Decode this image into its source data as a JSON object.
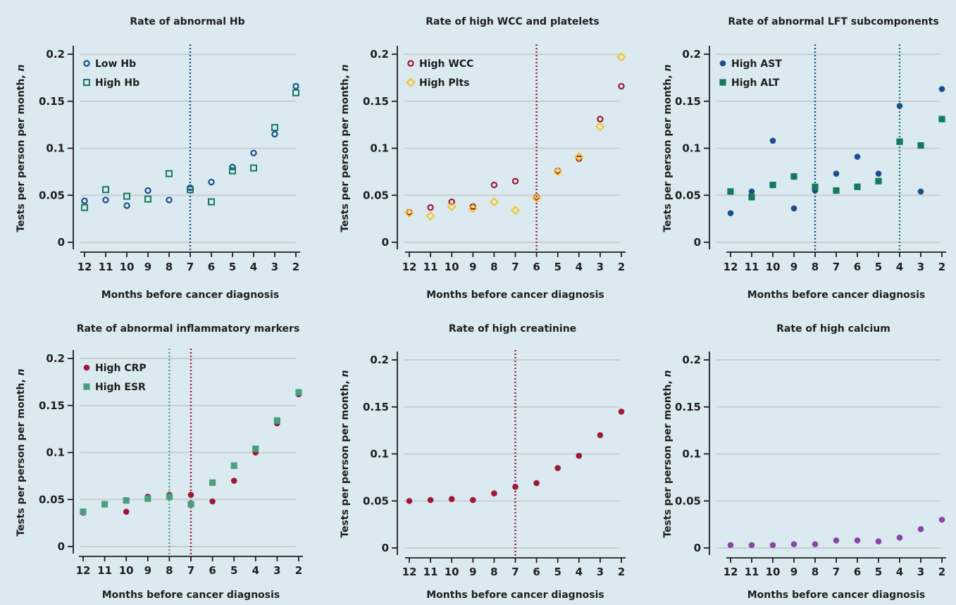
{
  "colors": {
    "background": "#dbeaf0",
    "gridline": "#c9cdd2",
    "axis": "#1e1e1e",
    "navy": "#1b4f8c",
    "green": "#137a5e",
    "crimson": "#9e1838",
    "gold": "#f5c21b",
    "seagreen": "#4a9e80",
    "purple": "#8a45a8"
  },
  "chart_data": [
    {
      "type": "scatter",
      "title": "Rate of abnormal Hb",
      "xlabel": "Months before cancer diagnosis",
      "ylabel": "Tests per person per month, n",
      "x": [
        12,
        11,
        10,
        9,
        8,
        7,
        6,
        5,
        4,
        3,
        2
      ],
      "xlim": [
        12,
        2
      ],
      "yticks": [
        "0",
        "0.05",
        "0.1",
        "0.15",
        "0.2"
      ],
      "ylim": [
        0,
        0.2
      ],
      "grid": true,
      "legend_position": "top-left",
      "vlines": [
        {
          "x": 7,
          "color": "#1b4f8c"
        }
      ],
      "series": [
        {
          "name": "Low Hb",
          "marker": "open-circle",
          "color": "#1b4f8c",
          "values": [
            0.044,
            0.045,
            0.039,
            0.055,
            0.045,
            0.058,
            0.064,
            0.08,
            0.095,
            0.115,
            0.166
          ]
        },
        {
          "name": "High Hb",
          "marker": "open-square",
          "color": "#137a5e",
          "values": [
            0.037,
            0.056,
            0.049,
            0.046,
            0.073,
            0.056,
            0.043,
            0.076,
            0.079,
            0.122,
            0.159
          ]
        }
      ]
    },
    {
      "type": "scatter",
      "title": "Rate of high WCC and platelets",
      "xlabel": "Months before cancer diagnosis",
      "ylabel": "Tests per person per month, n",
      "x": [
        12,
        11,
        10,
        9,
        8,
        7,
        6,
        5,
        4,
        3,
        2
      ],
      "xlim": [
        12,
        2
      ],
      "yticks": [
        "0",
        "0.05",
        "0.1",
        "0.15",
        "0.2"
      ],
      "ylim": [
        0,
        0.2
      ],
      "grid": true,
      "legend_position": "top-left",
      "vlines": [
        {
          "x": 6,
          "color": "#9e1838"
        }
      ],
      "series": [
        {
          "name": "High WCC",
          "marker": "open-circle",
          "color": "#9e1838",
          "values": [
            0.032,
            0.037,
            0.043,
            0.038,
            0.061,
            0.065,
            0.048,
            0.076,
            0.089,
            0.131,
            0.166
          ]
        },
        {
          "name": "High Plts",
          "marker": "open-diamond",
          "color": "#f5c21b",
          "values": [
            0.031,
            0.028,
            0.038,
            0.036,
            0.043,
            0.034,
            0.047,
            0.075,
            0.091,
            0.123,
            0.197
          ]
        }
      ]
    },
    {
      "type": "scatter",
      "title": "Rate of abnormal LFT subcomponents",
      "xlabel": "Months before cancer diagnosis",
      "ylabel": "Tests per person per month, n",
      "x": [
        12,
        11,
        10,
        9,
        8,
        7,
        6,
        5,
        4,
        3,
        2
      ],
      "xlim": [
        12,
        2
      ],
      "yticks": [
        "0",
        "0.05",
        "0.1",
        "0.15",
        "0.2"
      ],
      "ylim": [
        0,
        0.2
      ],
      "grid": true,
      "legend_position": "top-left",
      "vlines": [
        {
          "x": 8,
          "color": "#1b4f8c"
        },
        {
          "x": 4,
          "color": "#137a5e"
        }
      ],
      "series": [
        {
          "name": "High AST",
          "marker": "filled-circle",
          "color": "#1b4f8c",
          "values": [
            0.031,
            0.054,
            0.108,
            0.036,
            0.055,
            0.073,
            0.091,
            0.073,
            0.145,
            0.054,
            0.163
          ]
        },
        {
          "name": "High ALT",
          "marker": "filled-square",
          "color": "#137a5e",
          "values": [
            0.054,
            0.048,
            0.061,
            0.07,
            0.059,
            0.055,
            0.059,
            0.065,
            0.107,
            0.103,
            0.131
          ]
        }
      ]
    },
    {
      "type": "scatter",
      "title": "Rate of abnormal inflammatory markers",
      "xlabel": "Months before cancer diagnosis",
      "ylabel": "Tests per person per month, n",
      "x": [
        12,
        11,
        10,
        9,
        8,
        7,
        6,
        5,
        4,
        3,
        2
      ],
      "xlim": [
        12,
        2
      ],
      "yticks": [
        "0",
        "0.05",
        "0.1",
        "0.15",
        "0.2"
      ],
      "ylim": [
        0,
        0.2
      ],
      "grid": true,
      "legend_position": "top-left",
      "vlines": [
        {
          "x": 8,
          "color": "#4a9e80"
        },
        {
          "x": 7,
          "color": "#9e1838"
        }
      ],
      "series": [
        {
          "name": "High CRP",
          "marker": "filled-circle",
          "color": "#9e1838",
          "values": [
            0.036,
            0.045,
            0.037,
            0.053,
            0.055,
            0.055,
            0.048,
            0.07,
            0.1,
            0.131,
            0.162
          ]
        },
        {
          "name": "High ESR",
          "marker": "filled-square",
          "color": "#4a9e80",
          "values": [
            0.037,
            0.045,
            0.049,
            0.051,
            0.053,
            0.045,
            0.068,
            0.086,
            0.104,
            0.134,
            0.164
          ]
        }
      ]
    },
    {
      "type": "scatter",
      "title": "Rate of high creatinine",
      "xlabel": "Months before cancer diagnosis",
      "ylabel": "Tests per person per month, n",
      "x": [
        12,
        11,
        10,
        9,
        8,
        7,
        6,
        5,
        4,
        3,
        2
      ],
      "xlim": [
        12,
        2
      ],
      "yticks": [
        "0",
        "0.05",
        "0.1",
        "0.15",
        "0.2"
      ],
      "ylim": [
        0,
        0.2
      ],
      "grid": true,
      "legend_position": "",
      "vlines": [
        {
          "x": 7,
          "color": "#9e1838"
        }
      ],
      "series": [
        {
          "marker": "filled-circle",
          "color": "#9e1838",
          "values": [
            0.05,
            0.051,
            0.052,
            0.051,
            0.058,
            0.065,
            0.069,
            0.085,
            0.098,
            0.12,
            0.145
          ]
        }
      ]
    },
    {
      "type": "scatter",
      "title": "Rate of high calcium",
      "xlabel": "Months before cancer diagnosis",
      "ylabel": "Tests per person per month, n",
      "x": [
        12,
        11,
        10,
        9,
        8,
        7,
        6,
        5,
        4,
        3,
        2
      ],
      "xlim": [
        12,
        2
      ],
      "yticks": [
        "0",
        "0.05",
        "0.1",
        "0.15",
        "0.2"
      ],
      "ylim": [
        0,
        0.2
      ],
      "grid": true,
      "legend_position": "",
      "vlines": [],
      "series": [
        {
          "marker": "filled-circle",
          "color": "#8a45a8",
          "values": [
            0.003,
            0.003,
            0.003,
            0.004,
            0.004,
            0.008,
            0.008,
            0.007,
            0.011,
            0.02,
            0.03
          ]
        }
      ]
    }
  ]
}
